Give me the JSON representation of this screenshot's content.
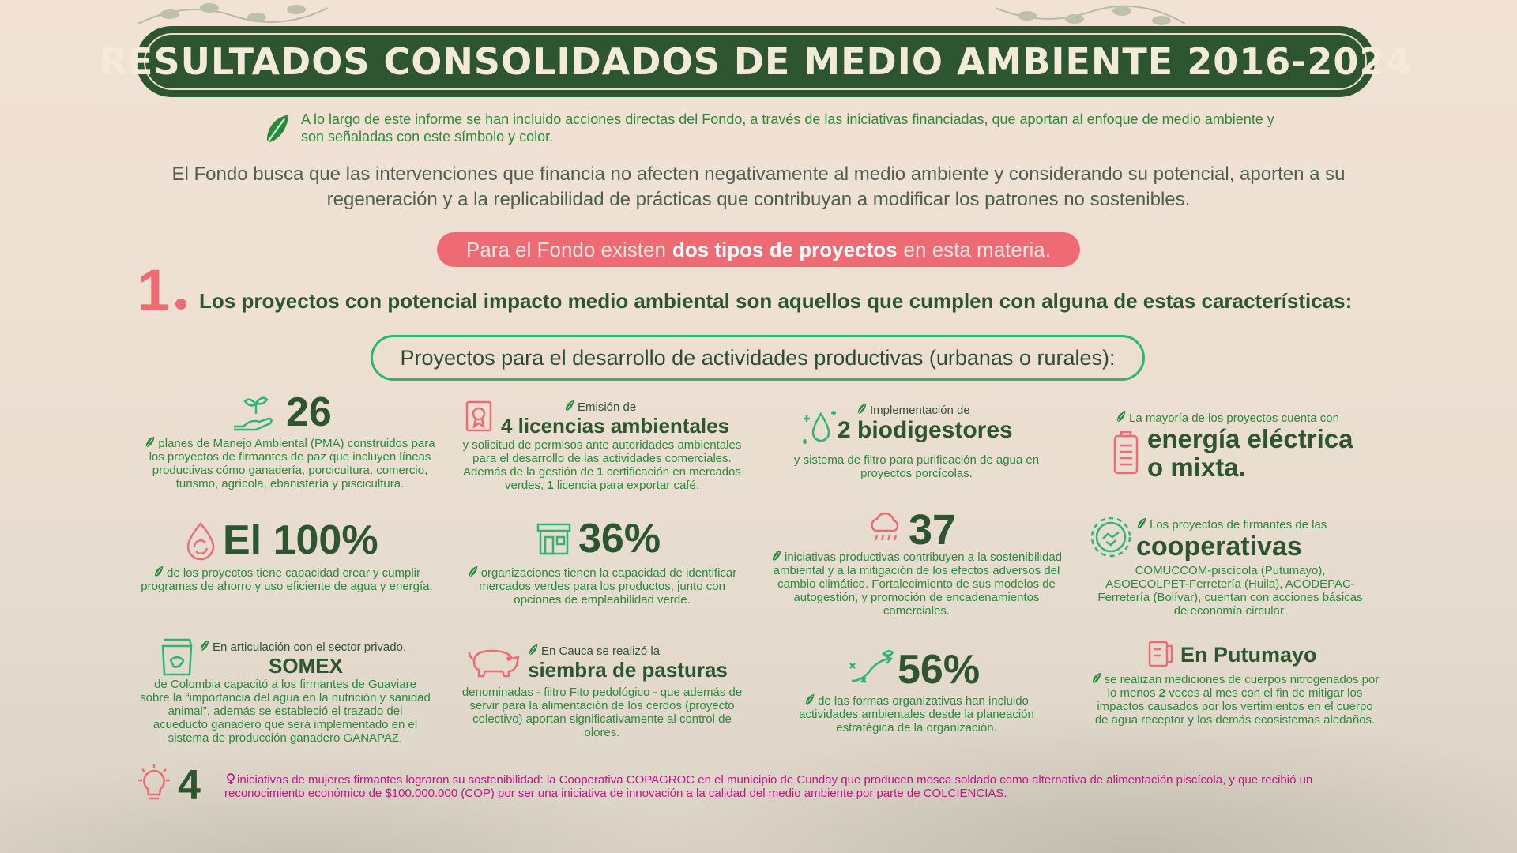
{
  "title": "RESULTADOS CONSOLIDADOS DE MEDIO AMBIENTE 2016-2024",
  "note": "A lo largo de este informe se han incluido acciones directas del Fondo, a través de las iniciativas financiadas, que aportan al enfoque de medio ambiente y son señaladas con este símbolo y color.",
  "intro": "El Fondo busca que las intervenciones que financia no afecten negativamente al medio ambiente y considerando su potencial, aporten a su regeneración y a la replicabilidad de prácticas que contribuyan a modificar los patrones no sostenibles.",
  "pill": {
    "pre": "Para el Fondo existen",
    "bold": "dos tipos de proyectos",
    "post": "en esta materia."
  },
  "section1": {
    "number": "1",
    "heading": "Los proyectos con potencial impacto medio ambiental son aquellos que cumplen con alguna de estas características:",
    "subheading": "Proyectos para el desarrollo de actividades productivas (urbanas o rurales):"
  },
  "cards": {
    "pma": {
      "big": "26",
      "text": "planes de Manejo Ambiental (PMA) construidos para los proyectos de firmantes de paz que incluyen líneas productivas cómo ganadería, porcicultura, comercio, turismo, agrícola, ebanistería y piscicultura."
    },
    "licencias": {
      "pre": "Emisión de",
      "big": "4 licencias ambientales",
      "text1": "y solicitud de permisos ante autoridades ambientales para el desarrollo de las actividades comerciales. Además de la gestión de",
      "n1": "1",
      "text2": "certificación en mercados verdes,",
      "n2": "1",
      "text3": "licencia para exportar café."
    },
    "biodigestores": {
      "pre": "Implementación de",
      "big": "2 biodigestores",
      "text": "y sistema de filtro para purificación de agua en proyectos porcícolas."
    },
    "energia": {
      "pre": "La mayoría de los proyectos cuenta con",
      "big1": "energía eléctrica",
      "big2": "o mixta."
    },
    "agua": {
      "big": "El 100%",
      "text": "de los proyectos tiene capacidad crear y cumplir programas de ahorro y uso eficiente de agua y energía."
    },
    "mercados": {
      "big": "36%",
      "text": "organizaciones tienen la capacidad de identificar mercados verdes para los productos, junto con opciones de empleabilidad verde."
    },
    "clima": {
      "big": "37",
      "text": "iniciativas productivas contribuyen a la sostenibilidad ambiental y a la mitigación de los efectos adversos del cambio climático. Fortalecimiento de sus modelos de autogestión, y promoción de encadenamientos comerciales."
    },
    "cooperativas": {
      "pre": "Los proyectos de firmantes de las",
      "big": "cooperativas",
      "text": "COMUCCOM-piscícola (Putumayo), ASOECOLPET-Ferretería (Huila), ACODEPAC-Ferretería (Bolívar), cuentan con acciones básicas de economía circular."
    },
    "somex": {
      "pre": "En articulación con el sector privado,",
      "big": "SOMEX",
      "text": "de Colombia capacitó a los firmantes de Guaviare sobre la “importancia del agua en la nutrición y sanidad animal”, además se estableció el trazado del acueducto ganadero que será implementado en el sistema de producción ganadero GANAPAZ."
    },
    "pasturas": {
      "pre": "En Cauca se realizó la",
      "big": "siembra de pasturas",
      "text": "denominadas - filtro Fito pedológico - que además de servir para la alimentación de los cerdos (proyecto colectivo) aportan significativamente al control de olores."
    },
    "formas": {
      "big": "56%",
      "text": "de las formas organizativas han incluido actividades ambientales desde la planeación estratégica de la organización."
    },
    "putumayo": {
      "big": "En Putumayo",
      "text1": "se realizan mediciones de cuerpos nitrogenados por lo menos",
      "n": "2",
      "text2": "veces al mes con el fin de mitigar los impactos causados por los vertimientos en el cuerpo de agua receptor y los demás ecosistemas aledaños."
    }
  },
  "footer": {
    "big": "4",
    "text": "iniciativas de mujeres firmantes lograron su sostenibilidad: la Cooperativa COPAGROC en el municipio de Cunday que producen mosca soldado como alternativa de alimentación piscícola, y que recibió un reconocimiento económico de $100.000.000 (COP) por ser una iniciativa de innovación a la calidad del medio ambiente por parte de COLCIENCIAS."
  },
  "colors": {
    "dark_green": "#2d5530",
    "leaf_green": "#2a8a3a",
    "coral": "#ef6b74",
    "magenta": "#c0138a"
  }
}
